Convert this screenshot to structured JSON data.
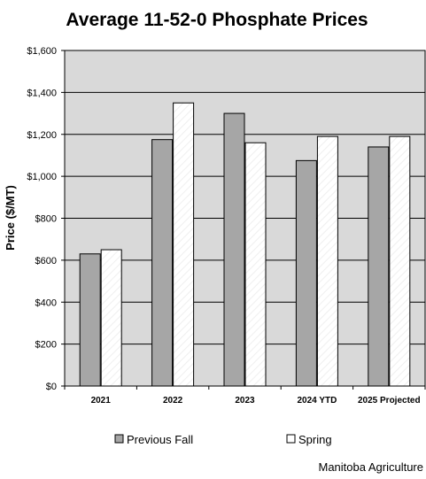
{
  "chart_data": {
    "type": "bar",
    "title": "Average 11-52-0 Phosphate Prices",
    "xlabel": "",
    "ylabel": "Price ($/MT)",
    "ylim": [
      0,
      1600
    ],
    "yticks": [
      "$0",
      "$200",
      "$400",
      "$600",
      "$800",
      "$1,000",
      "$1,200",
      "$1,400",
      "$1,600"
    ],
    "ytick_values": [
      0,
      200,
      400,
      600,
      800,
      1000,
      1200,
      1400,
      1600
    ],
    "categories": [
      "2021",
      "2022",
      "2023",
      "2024 YTD",
      "2025 Projected"
    ],
    "series": [
      {
        "name": "Previous Fall",
        "values": [
          630,
          1175,
          1300,
          1075,
          1140
        ]
      },
      {
        "name": "Spring",
        "values": [
          650,
          1350,
          1160,
          1190,
          1190
        ]
      }
    ],
    "grid": true,
    "legend_position": "bottom"
  },
  "colors": {
    "plot_background": "#d9d9d9",
    "previous_fall": "#a6a6a6",
    "spring": "#ffffff",
    "gridline": "#000000"
  },
  "source": "Manitoba Agriculture"
}
